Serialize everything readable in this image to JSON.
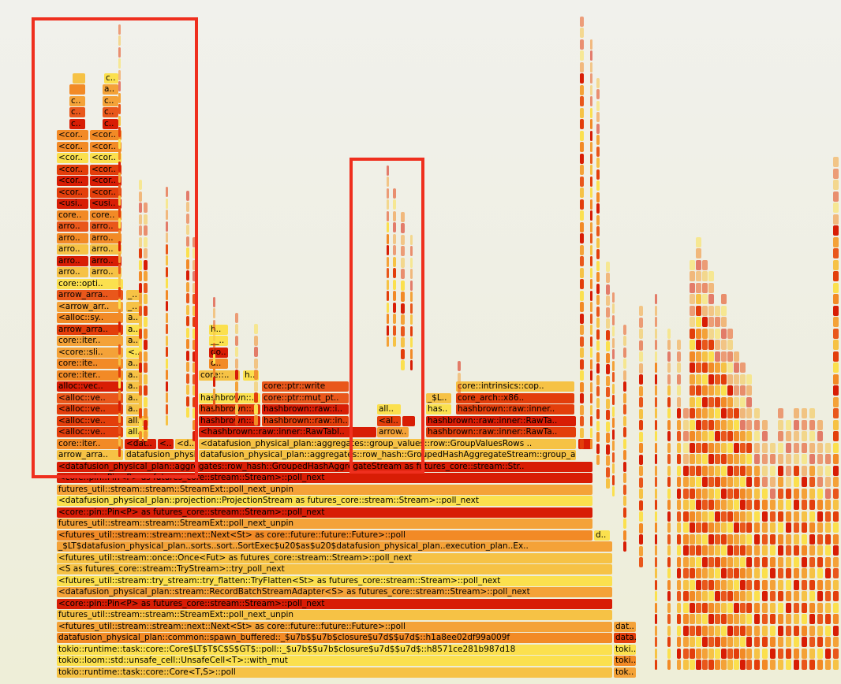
{
  "colors": {
    "c1": "#e33e0b",
    "c2": "#f28a26",
    "c3": "#f4a238",
    "c4": "#f6c245",
    "c5": "#fbe04e",
    "c6": "#d81d05",
    "c7": "#e9571b",
    "highlight": "#ef2f1e"
  },
  "frames": [
    {
      "l": 72,
      "t": 847,
      "w": 704,
      "c": "c4",
      "text": "tokio::runtime::task::core::Core<T,S>::poll"
    },
    {
      "l": 778,
      "t": 847,
      "w": 28,
      "c": "c3",
      "text": "tok.."
    },
    {
      "l": 72,
      "t": 832,
      "w": 704,
      "c": "c5",
      "text": "tokio::loom::std::unsafe_cell::UnsafeCell<T>::with_mut"
    },
    {
      "l": 778,
      "t": 832,
      "w": 28,
      "c": "c2",
      "text": "toki.."
    },
    {
      "l": 72,
      "t": 818,
      "w": 704,
      "c": "c5",
      "text": "tokio::runtime::task::core::Core$LT$T$C$S$GT$::poll::_$u7b$$u7b$closure$u7d$$u7d$::h8571ce281b987d18"
    },
    {
      "l": 778,
      "t": 818,
      "w": 28,
      "c": "c5",
      "text": "toki.."
    },
    {
      "l": 72,
      "t": 803,
      "w": 704,
      "c": "c2",
      "text": "datafusion_physical_plan::common::spawn_buffered::_$u7b$$u7b$closure$u7d$$u7d$::h1a8ee02df99a009f"
    },
    {
      "l": 778,
      "t": 803,
      "w": 28,
      "c": "c1",
      "text": "data.."
    },
    {
      "l": 72,
      "t": 789,
      "w": 704,
      "c": "c3",
      "text": "<futures_util::stream::stream::next::Next<St> as core::future::future::Future>::poll"
    },
    {
      "l": 778,
      "t": 789,
      "w": 28,
      "c": "c3",
      "text": "dat.."
    },
    {
      "l": 72,
      "t": 774,
      "w": 704,
      "c": "c4",
      "text": "futures_util::stream::stream::StreamExt::poll_next_unpin"
    },
    {
      "l": 72,
      "t": 760,
      "w": 704,
      "c": "c6",
      "text": "<core::pin::Pin<P> as futures_core::stream::Stream>::poll_next"
    },
    {
      "l": 72,
      "t": 745,
      "w": 704,
      "c": "c3",
      "text": "<datafusion_physical_plan::stream::RecordBatchStreamAdapter<S> as futures_core::stream::Stream>::poll_next"
    },
    {
      "l": 72,
      "t": 731,
      "w": 704,
      "c": "c5",
      "text": "<futures_util::stream::try_stream::try_flatten::TryFlatten<St> as futures_core::stream::Stream>::poll_next"
    },
    {
      "l": 72,
      "t": 716,
      "w": 704,
      "c": "c4",
      "text": "<S as futures_core::stream::TryStream>::try_poll_next"
    },
    {
      "l": 72,
      "t": 702,
      "w": 704,
      "c": "c4",
      "text": "<futures_util::stream::once::Once<Fut> as futures_core::stream::Stream>::poll_next"
    },
    {
      "l": 72,
      "t": 687,
      "w": 704,
      "c": "c3",
      "text": "_$LT$datafusion_physical_plan..sorts..sort..SortExec$u20$as$u20$datafusion_physical_plan..execution_plan..Ex.."
    },
    {
      "l": 72,
      "t": 673,
      "w": 679,
      "c": "c2",
      "text": "<futures_util::stream::stream::next::Next<St> as core::future::future::Future>::poll"
    },
    {
      "l": 753,
      "t": 673,
      "w": 20,
      "c": "c5",
      "text": "d.."
    },
    {
      "l": 72,
      "t": 658,
      "w": 679,
      "c": "c3",
      "text": "futures_util::stream::stream::StreamExt::poll_next_unpin"
    },
    {
      "l": 72,
      "t": 644,
      "w": 679,
      "c": "c6",
      "text": "<core::pin::Pin<P> as futures_core::stream::Stream>::poll_next"
    },
    {
      "l": 72,
      "t": 629,
      "w": 679,
      "c": "c5",
      "text": "<datafusion_physical_plan::projection::ProjectionStream as futures_core::stream::Stream>::poll_next"
    },
    {
      "l": 72,
      "t": 615,
      "w": 679,
      "c": "c3",
      "text": "futures_util::stream::stream::StreamExt::poll_next_unpin"
    },
    {
      "l": 72,
      "t": 600,
      "w": 679,
      "c": "c6",
      "text": "<core::pin::Pin<P> as futures_core::stream::Stream>::poll_next"
    },
    {
      "l": 72,
      "t": 586,
      "w": 679,
      "c": "c6",
      "text": "<datafusion_physical_plan::aggregates::row_hash::GroupedHashAggregateStream as futures_core::stream::Str.."
    },
    {
      "l": 72,
      "t": 571,
      "w": 84,
      "c": "c4",
      "text": "arrow_arra.."
    },
    {
      "l": 158,
      "t": 571,
      "w": 92,
      "c": "c4",
      "text": "datafusion_physical_plan::aggregates::row_hash::GroupedHashAggregateStream::group_aggreg.."
    },
    {
      "l": 252,
      "t": 571,
      "w": 478,
      "c": "c4",
      "text": "datafusion_physical_plan::aggregates::row_hash::GroupedHashAggregateStream::group_aggreg.."
    },
    {
      "l": 72,
      "t": 557,
      "w": 84,
      "c": "c2",
      "text": "core::iter.."
    },
    {
      "l": 158,
      "t": 557,
      "w": 40,
      "c": "c6",
      "text": "<dat.."
    },
    {
      "l": 200,
      "t": 557,
      "w": 20,
      "c": "c6",
      "text": "<.."
    },
    {
      "l": 222,
      "t": 557,
      "w": 28,
      "c": "c4",
      "text": "<d.."
    },
    {
      "l": 252,
      "t": 557,
      "w": 478,
      "c": "c4",
      "text": "<datafusion_physical_plan::aggregates::group_values::row::GroupValuesRows .."
    },
    {
      "l": 733,
      "t": 557,
      "w": 18,
      "c": "c6",
      "text": ""
    },
    {
      "l": 72,
      "t": 542,
      "w": 84,
      "c": "c1",
      "text": "<alloc::ve.."
    },
    {
      "l": 160,
      "t": 542,
      "w": 28,
      "c": "c5",
      "text": "all.."
    },
    {
      "l": 252,
      "t": 542,
      "w": 225,
      "c": "c6",
      "text": "<hashbrown::raw::inner::RawTabl.."
    },
    {
      "l": 478,
      "t": 542,
      "w": 40,
      "c": "c3",
      "text": "arrow.."
    },
    {
      "l": 540,
      "t": 542,
      "w": 190,
      "c": "c1",
      "text": "hashbrown::raw::inner::RawTa.."
    },
    {
      "l": 72,
      "t": 528,
      "w": 84,
      "c": "c1",
      "text": "<alloc::ve.."
    },
    {
      "l": 160,
      "t": 528,
      "w": 28,
      "c": "c4",
      "text": "all.."
    },
    {
      "l": 252,
      "t": 528,
      "w": 78,
      "c": "c6",
      "text": "hashbrown::.."
    },
    {
      "l": 332,
      "t": 528,
      "w": 110,
      "c": "c1",
      "text": "hashbrown::raw::in.."
    },
    {
      "l": 478,
      "t": 528,
      "w": 30,
      "c": "c1",
      "text": "<al.."
    },
    {
      "l": 510,
      "t": 528,
      "w": 16,
      "c": "c6",
      "text": ""
    },
    {
      "l": 540,
      "t": 528,
      "w": 190,
      "c": "c6",
      "text": "hashbrown::raw::inner::RawTa.."
    },
    {
      "l": 72,
      "t": 513,
      "w": 84,
      "c": "c1",
      "text": "<alloc::ve.."
    },
    {
      "l": 160,
      "t": 513,
      "w": 20,
      "c": "c4",
      "text": "a.."
    },
    {
      "l": 252,
      "t": 513,
      "w": 78,
      "c": "c1",
      "text": "hashbrown::.."
    },
    {
      "l": 332,
      "t": 513,
      "w": 110,
      "c": "c6",
      "text": "hashbrown::raw::i.."
    },
    {
      "l": 478,
      "t": 513,
      "w": 30,
      "c": "c5",
      "text": "all.."
    },
    {
      "l": 540,
      "t": 513,
      "w": 32,
      "c": "c5",
      "text": "has.."
    },
    {
      "l": 578,
      "t": 513,
      "w": 150,
      "c": "c1",
      "text": "hashbrown::raw::inner.."
    },
    {
      "l": 72,
      "t": 499,
      "w": 84,
      "c": "c7",
      "text": "<alloc::ve.."
    },
    {
      "l": 160,
      "t": 499,
      "w": 20,
      "c": "c4",
      "text": "a.."
    },
    {
      "l": 252,
      "t": 499,
      "w": 78,
      "c": "c5",
      "text": "hashbrown::.."
    },
    {
      "l": 332,
      "t": 499,
      "w": 110,
      "c": "c7",
      "text": "core::ptr::mut_pt.."
    },
    {
      "l": 540,
      "t": 499,
      "w": 32,
      "c": "c4",
      "text": "_$L.."
    },
    {
      "l": 578,
      "t": 499,
      "w": 150,
      "c": "c1",
      "text": "core_arch::x86.."
    },
    {
      "l": 72,
      "t": 484,
      "w": 84,
      "c": "c6",
      "text": "alloc::vec.."
    },
    {
      "l": 160,
      "t": 484,
      "w": 20,
      "c": "c4",
      "text": "a.."
    },
    {
      "l": 332,
      "t": 484,
      "w": 110,
      "c": "c7",
      "text": "core::ptr::write"
    },
    {
      "l": 578,
      "t": 484,
      "w": 150,
      "c": "c4",
      "text": "core::intrinsics::cop.."
    },
    {
      "l": 72,
      "t": 470,
      "w": 84,
      "c": "c2",
      "text": "core::iter.."
    },
    {
      "l": 160,
      "t": 470,
      "w": 20,
      "c": "c4",
      "text": "a.."
    },
    {
      "l": 252,
      "t": 470,
      "w": 52,
      "c": "c4",
      "text": "core::.."
    },
    {
      "l": 308,
      "t": 470,
      "w": 20,
      "c": "c5",
      "text": "h.."
    },
    {
      "l": 72,
      "t": 455,
      "w": 84,
      "c": "c2",
      "text": "core::ite.."
    },
    {
      "l": 160,
      "t": 455,
      "w": 20,
      "c": "c4",
      "text": "a.."
    },
    {
      "l": 265,
      "t": 455,
      "w": 24,
      "c": "c2",
      "text": "d.."
    },
    {
      "l": 72,
      "t": 441,
      "w": 84,
      "c": "c3",
      "text": "<core::sli.."
    },
    {
      "l": 160,
      "t": 441,
      "w": 20,
      "c": "c5",
      "text": "<.."
    },
    {
      "l": 265,
      "t": 441,
      "w": 24,
      "c": "c6",
      "text": "do.."
    },
    {
      "l": 72,
      "t": 426,
      "w": 84,
      "c": "c3",
      "text": "core::iter.."
    },
    {
      "l": 160,
      "t": 426,
      "w": 20,
      "c": "c4",
      "text": "a.."
    },
    {
      "l": 265,
      "t": 426,
      "w": 24,
      "c": "c5",
      "text": "__.."
    },
    {
      "l": 72,
      "t": 412,
      "w": 84,
      "c": "c1",
      "text": "arrow_arra.."
    },
    {
      "l": 160,
      "t": 412,
      "w": 20,
      "c": "c5",
      "text": "a.."
    },
    {
      "l": 265,
      "t": 412,
      "w": 24,
      "c": "c5",
      "text": "h.."
    },
    {
      "l": 72,
      "t": 397,
      "w": 84,
      "c": "c2",
      "text": "<alloc::sy.."
    },
    {
      "l": 160,
      "t": 397,
      "w": 20,
      "c": "c4",
      "text": "a.."
    },
    {
      "l": 72,
      "t": 383,
      "w": 84,
      "c": "c3",
      "text": "<arrow_arr.."
    },
    {
      "l": 160,
      "t": 383,
      "w": 20,
      "c": "c4",
      "text": "_.."
    },
    {
      "l": 72,
      "t": 368,
      "w": 84,
      "c": "c7",
      "text": "arrow_arra.."
    },
    {
      "l": 160,
      "t": 368,
      "w": 20,
      "c": "c4",
      "text": "_.."
    },
    {
      "l": 72,
      "t": 354,
      "w": 84,
      "c": "c5",
      "text": "core::opti.."
    },
    {
      "l": 72,
      "t": 339,
      "w": 40,
      "c": "c4",
      "text": "arro.."
    },
    {
      "l": 114,
      "t": 339,
      "w": 40,
      "c": "c4",
      "text": "arro.."
    },
    {
      "l": 72,
      "t": 325,
      "w": 40,
      "c": "c6",
      "text": "arro.."
    },
    {
      "l": 114,
      "t": 325,
      "w": 40,
      "c": "c6",
      "text": "arro.."
    },
    {
      "l": 72,
      "t": 310,
      "w": 40,
      "c": "c4",
      "text": "arro.."
    },
    {
      "l": 114,
      "t": 310,
      "w": 40,
      "c": "c4",
      "text": "arro.."
    },
    {
      "l": 72,
      "t": 296,
      "w": 40,
      "c": "c2",
      "text": "arro.."
    },
    {
      "l": 114,
      "t": 296,
      "w": 40,
      "c": "c2",
      "text": "arro.."
    },
    {
      "l": 72,
      "t": 281,
      "w": 40,
      "c": "c7",
      "text": "arro.."
    },
    {
      "l": 114,
      "t": 281,
      "w": 40,
      "c": "c7",
      "text": "arro.."
    },
    {
      "l": 72,
      "t": 267,
      "w": 40,
      "c": "c2",
      "text": "core.."
    },
    {
      "l": 114,
      "t": 267,
      "w": 40,
      "c": "c2",
      "text": "core.."
    },
    {
      "l": 72,
      "t": 252,
      "w": 40,
      "c": "c6",
      "text": "<usi.."
    },
    {
      "l": 114,
      "t": 252,
      "w": 40,
      "c": "c6",
      "text": "<usi.."
    },
    {
      "l": 72,
      "t": 238,
      "w": 40,
      "c": "c1",
      "text": "<cor.."
    },
    {
      "l": 114,
      "t": 238,
      "w": 40,
      "c": "c1",
      "text": "<cor.."
    },
    {
      "l": 72,
      "t": 223,
      "w": 40,
      "c": "c6",
      "text": "<cor.."
    },
    {
      "l": 114,
      "t": 223,
      "w": 40,
      "c": "c6",
      "text": "<cor.."
    },
    {
      "l": 72,
      "t": 209,
      "w": 40,
      "c": "c1",
      "text": "<cor.."
    },
    {
      "l": 114,
      "t": 209,
      "w": 40,
      "c": "c1",
      "text": "<cor.."
    },
    {
      "l": 72,
      "t": 194,
      "w": 40,
      "c": "c5",
      "text": "<cor.."
    },
    {
      "l": 114,
      "t": 194,
      "w": 40,
      "c": "c5",
      "text": "<cor.."
    },
    {
      "l": 72,
      "t": 180,
      "w": 40,
      "c": "c2",
      "text": "<cor.."
    },
    {
      "l": 114,
      "t": 180,
      "w": 40,
      "c": "c2",
      "text": "<cor.."
    },
    {
      "l": 72,
      "t": 165,
      "w": 40,
      "c": "c2",
      "text": "<cor.."
    },
    {
      "l": 114,
      "t": 165,
      "w": 40,
      "c": "c2",
      "text": "<cor.."
    },
    {
      "l": 88,
      "t": 151,
      "w": 20,
      "c": "c6",
      "text": "c.."
    },
    {
      "l": 130,
      "t": 151,
      "w": 20,
      "c": "c6",
      "text": "c.."
    },
    {
      "l": 88,
      "t": 136,
      "w": 20,
      "c": "c7",
      "text": "c.."
    },
    {
      "l": 130,
      "t": 136,
      "w": 20,
      "c": "c7",
      "text": "c.."
    },
    {
      "l": 88,
      "t": 122,
      "w": 20,
      "c": "c3",
      "text": "c.."
    },
    {
      "l": 130,
      "t": 122,
      "w": 20,
      "c": "c3",
      "text": "c.."
    },
    {
      "l": 88,
      "t": 107,
      "w": 20,
      "c": "c2",
      "text": ""
    },
    {
      "l": 130,
      "t": 107,
      "w": 20,
      "c": "c3",
      "text": "a.."
    },
    {
      "l": 92,
      "t": 93,
      "w": 16,
      "c": "c4",
      "text": ""
    },
    {
      "l": 132,
      "t": 93,
      "w": 18,
      "c": "c5",
      "text": "c.."
    }
  ],
  "highlights": [
    {
      "l": 40,
      "t": 22,
      "w": 211,
      "h": 585
    },
    {
      "l": 443,
      "t": 200,
      "w": 95,
      "h": 401
    }
  ]
}
